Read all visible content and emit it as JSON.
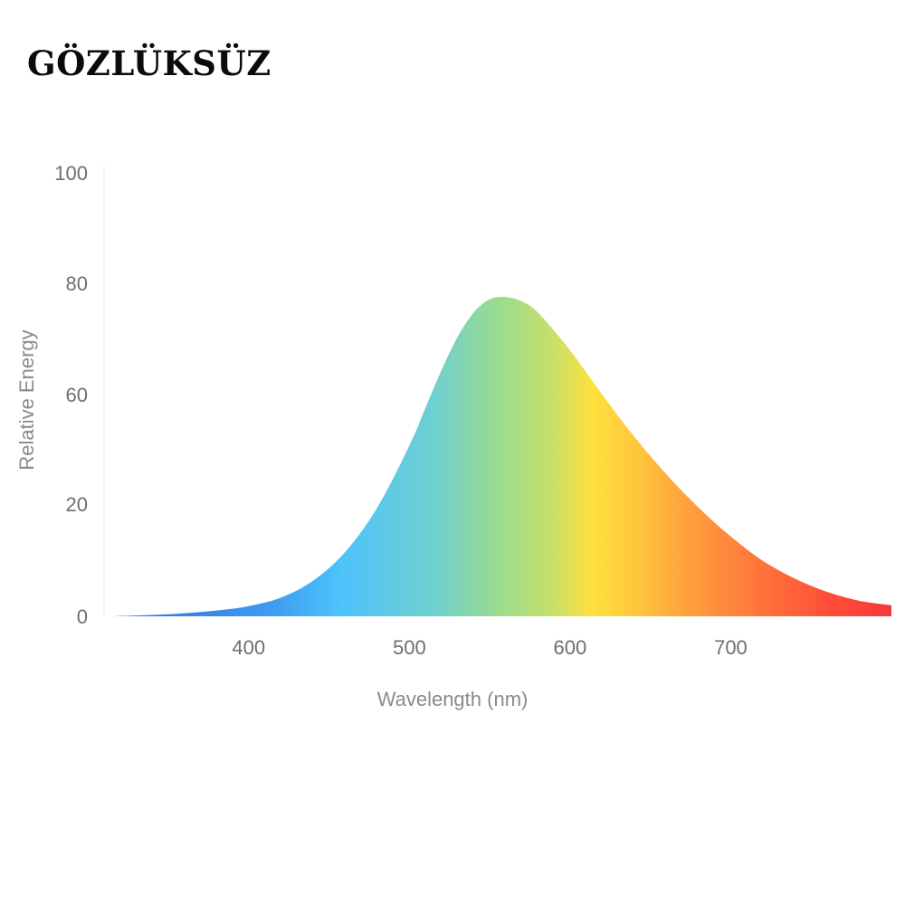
{
  "brand": {
    "logo_text": "GÖZLÜKSÜZ"
  },
  "chart_data": {
    "type": "area",
    "title": "",
    "xlabel": "Wavelength (nm)",
    "ylabel": "Relative Energy",
    "xlim": [
      310,
      800
    ],
    "x_ticks": [
      400,
      500,
      600,
      700
    ],
    "y_ticks": [
      {
        "value": 0,
        "label": "0"
      },
      {
        "value": 20,
        "label": "20"
      },
      {
        "value": 60,
        "label": "60"
      },
      {
        "value": 80,
        "label": "80"
      },
      {
        "value": 100,
        "label": "100"
      }
    ],
    "grid": false,
    "legend": "none",
    "fill": "visible spectrum gradient (blue → cyan → green → yellow → orange → red)",
    "series": [
      {
        "x": [
          315,
          340,
          360,
          380,
          400,
          420,
          440,
          460,
          480,
          500,
          510,
          520,
          530,
          540,
          550,
          560,
          570,
          580,
          600,
          620,
          640,
          660,
          680,
          700,
          720,
          740,
          760,
          780,
          800
        ],
        "values": [
          0,
          0.3,
          0.7,
          1.3,
          2.3,
          4.2,
          8,
          14.5,
          24.5,
          38.5,
          47,
          55.5,
          63,
          68.5,
          71.5,
          72,
          71,
          68.5,
          60,
          50,
          40.5,
          32,
          24.5,
          18,
          12.5,
          8.5,
          5.5,
          3.5,
          2.5
        ]
      }
    ]
  },
  "colors": {
    "spectrum": [
      "#2b6fe0",
      "#3f9af0",
      "#4cc3fb",
      "#6fd0d0",
      "#9adb8e",
      "#c7e06a",
      "#ffe13e",
      "#ffc43c",
      "#ffa13c",
      "#ff7a3c",
      "#ff4a38",
      "#f43a3a"
    ],
    "tick_text": "#6f6f6f",
    "axis_line": "#f0f3fa"
  }
}
